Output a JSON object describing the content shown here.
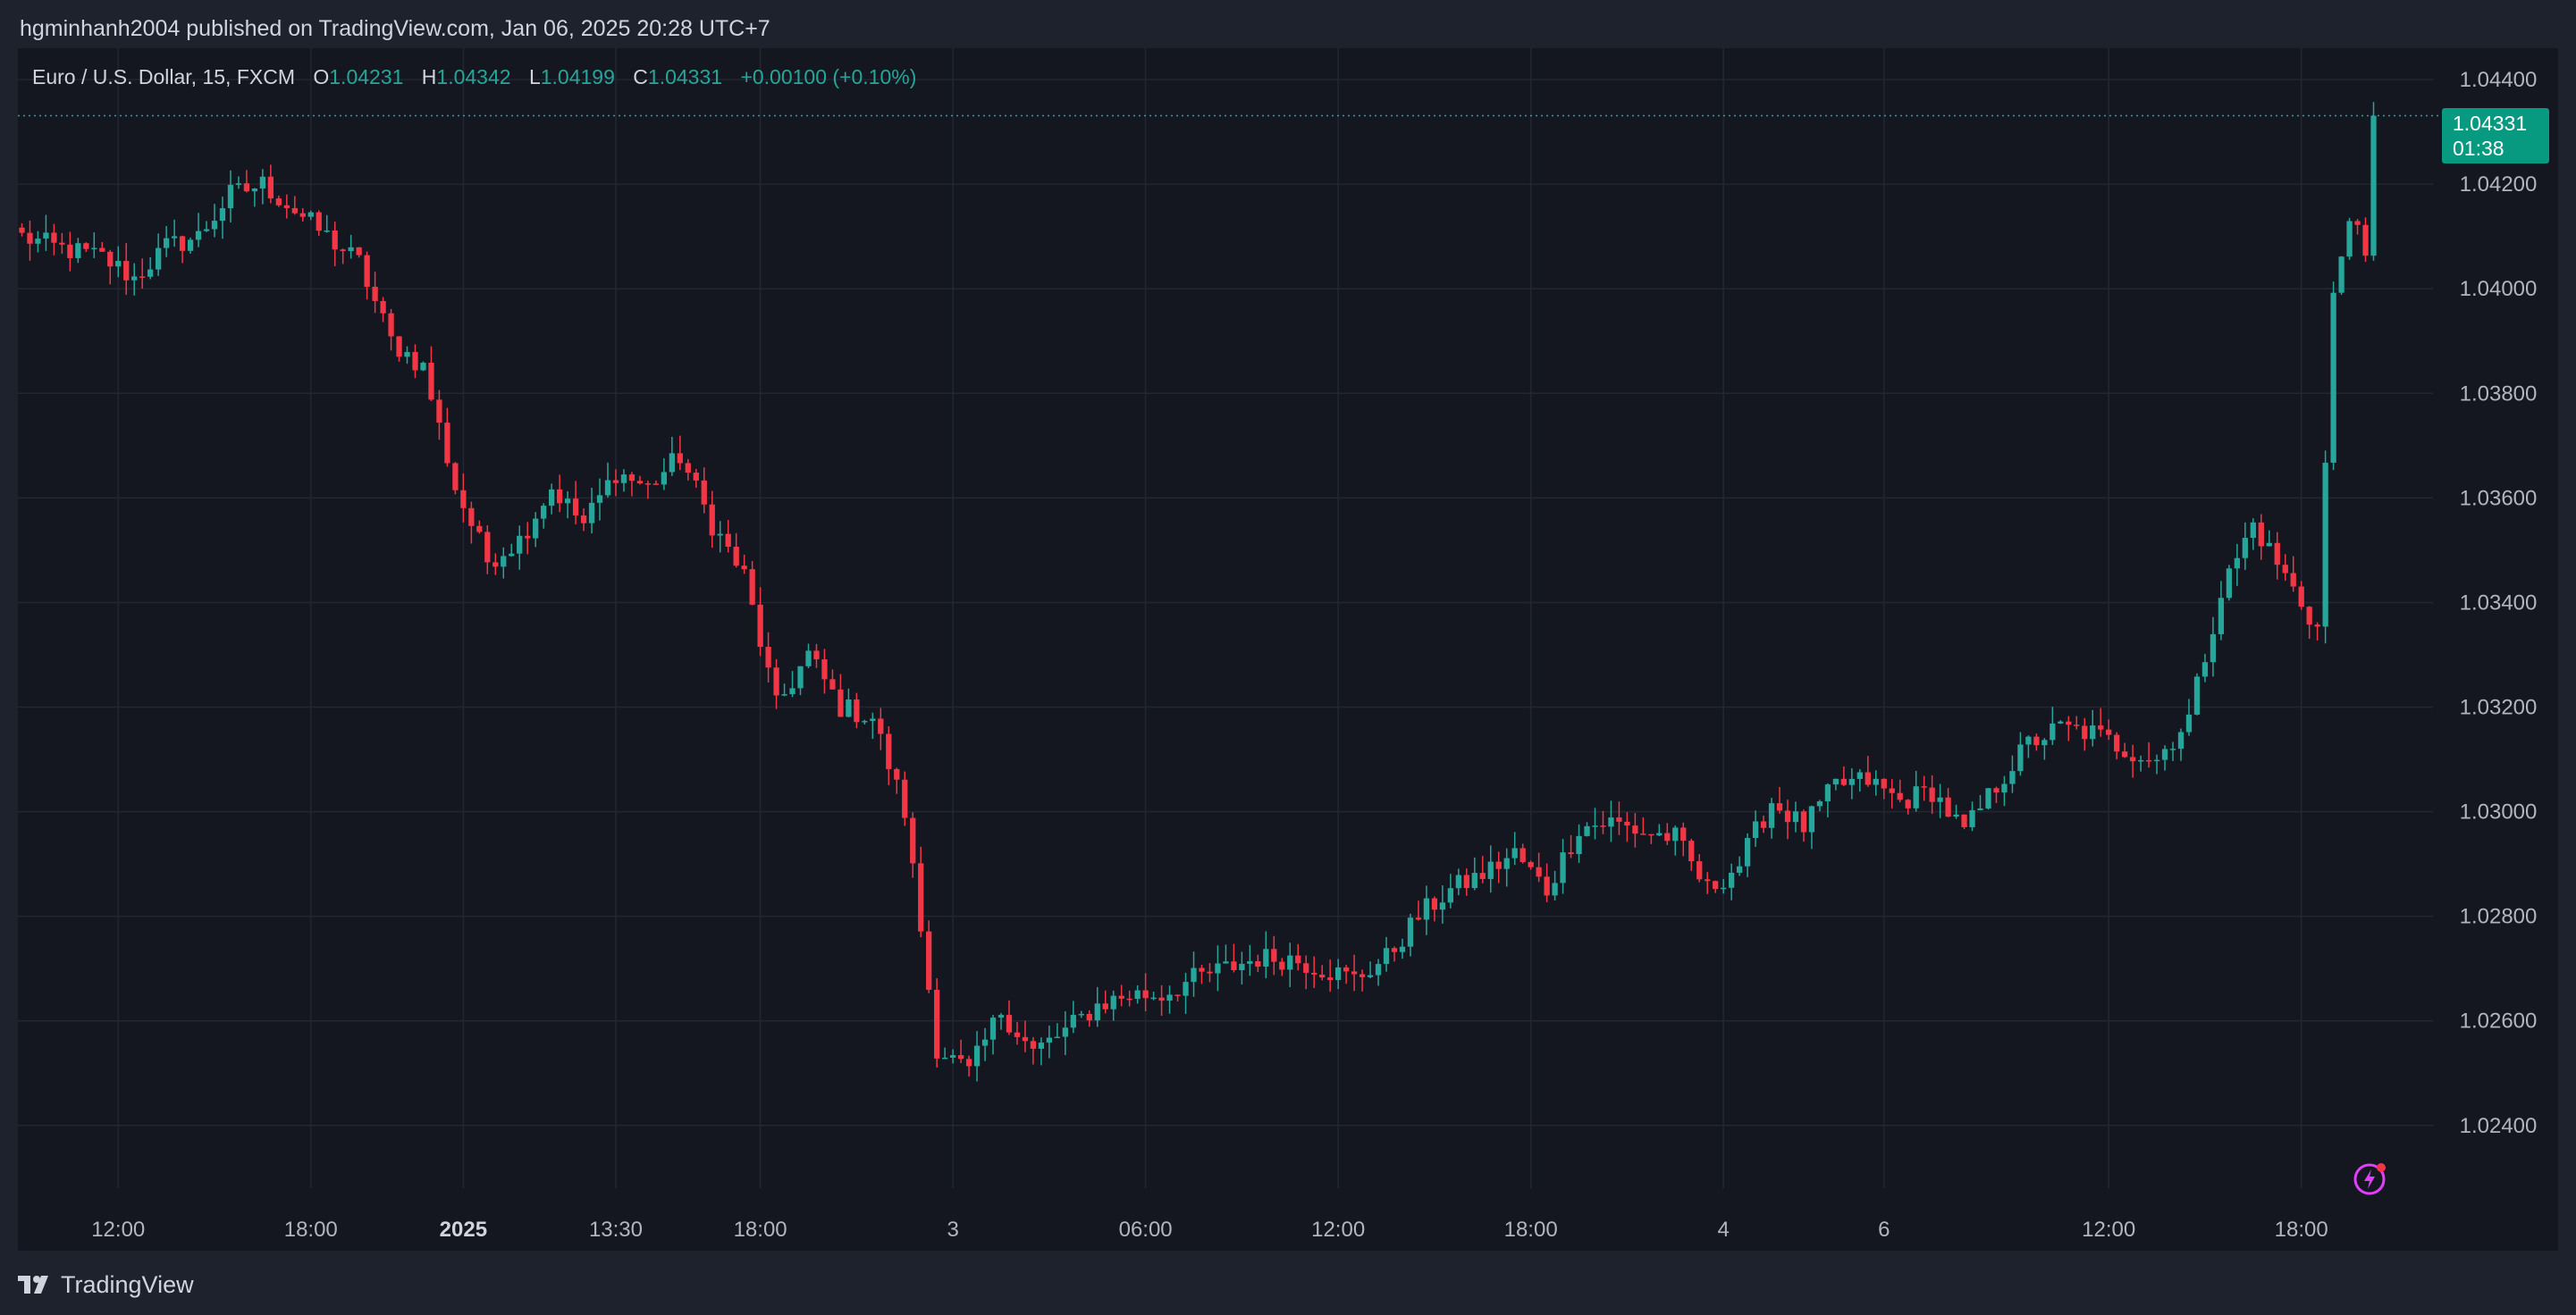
{
  "header": {
    "published_by": "hgminhanh2004 published on TradingView.com, Jan 06, 2025 20:28 UTC+7"
  },
  "legend": {
    "symbol": "Euro / U.S. Dollar, 15, FXCM",
    "open_label": "O",
    "open": "1.04231",
    "high_label": "H",
    "high": "1.04342",
    "low_label": "L",
    "low": "1.04199",
    "close_label": "C",
    "close": "1.04331",
    "change": "+0.00100 (+0.10%)"
  },
  "price_tag": {
    "price": "1.04331",
    "countdown": "01:38"
  },
  "footer": {
    "brand": "TradingView"
  },
  "icons": {
    "logo": "tradingview-logo-icon",
    "bolt": "lightning-bolt-icon"
  },
  "colors": {
    "up": "#26a69a",
    "down": "#f23645",
    "background": "#141720",
    "grid": "#232732",
    "axis_text": "#b2b5be",
    "accent_bolt": "#e040fb"
  },
  "chart_data": {
    "type": "candlestick",
    "ylim": [
      1.0228,
      1.0446
    ],
    "y_ticks": [
      "1.04400",
      "1.04200",
      "1.04000",
      "1.03800",
      "1.03600",
      "1.03400",
      "1.03200",
      "1.03000",
      "1.02800",
      "1.02600",
      "1.02400"
    ],
    "x_ticks": [
      {
        "label": "12:00",
        "bar": 12
      },
      {
        "label": "18:00",
        "bar": 36
      },
      {
        "label": "2025",
        "bar": 55,
        "bold": true
      },
      {
        "label": "13:30",
        "bar": 74
      },
      {
        "label": "18:00",
        "bar": 92
      },
      {
        "label": "3",
        "bar": 116
      },
      {
        "label": "06:00",
        "bar": 140
      },
      {
        "label": "12:00",
        "bar": 164
      },
      {
        "label": "18:00",
        "bar": 188
      },
      {
        "label": "4",
        "bar": 212
      },
      {
        "label": "6",
        "bar": 232
      },
      {
        "label": "12:00",
        "bar": 260
      },
      {
        "label": "18:00",
        "bar": 284
      }
    ],
    "current_price": 1.04331,
    "last_bar": 293,
    "key_prices": [
      [
        0,
        1.041
      ],
      [
        4,
        1.0408
      ],
      [
        10,
        1.0406
      ],
      [
        14,
        1.0402
      ],
      [
        18,
        1.0408
      ],
      [
        22,
        1.041
      ],
      [
        26,
        1.0418
      ],
      [
        30,
        1.042
      ],
      [
        34,
        1.0415
      ],
      [
        38,
        1.041
      ],
      [
        42,
        1.0405
      ],
      [
        46,
        1.039
      ],
      [
        50,
        1.0385
      ],
      [
        54,
        1.0362
      ],
      [
        58,
        1.0348
      ],
      [
        62,
        1.0352
      ],
      [
        66,
        1.0362
      ],
      [
        70,
        1.0355
      ],
      [
        74,
        1.0365
      ],
      [
        78,
        1.0362
      ],
      [
        82,
        1.0368
      ],
      [
        86,
        1.0355
      ],
      [
        90,
        1.0345
      ],
      [
        94,
        1.032
      ],
      [
        98,
        1.033
      ],
      [
        102,
        1.032
      ],
      [
        106,
        1.0318
      ],
      [
        110,
        1.03
      ],
      [
        114,
        1.0255
      ],
      [
        118,
        1.025
      ],
      [
        122,
        1.0262
      ],
      [
        126,
        1.0254
      ],
      [
        130,
        1.0258
      ],
      [
        134,
        1.0263
      ],
      [
        138,
        1.0265
      ],
      [
        142,
        1.0265
      ],
      [
        146,
        1.0268
      ],
      [
        150,
        1.027
      ],
      [
        154,
        1.0272
      ],
      [
        158,
        1.0272
      ],
      [
        162,
        1.027
      ],
      [
        166,
        1.0268
      ],
      [
        170,
        1.0272
      ],
      [
        174,
        1.028
      ],
      [
        178,
        1.0285
      ],
      [
        182,
        1.0288
      ],
      [
        186,
        1.0292
      ],
      [
        190,
        1.0285
      ],
      [
        194,
        1.0297
      ],
      [
        198,
        1.0298
      ],
      [
        202,
        1.0296
      ],
      [
        206,
        1.0295
      ],
      [
        210,
        1.0285
      ],
      [
        214,
        1.029
      ],
      [
        218,
        1.0302
      ],
      [
        222,
        1.0297
      ],
      [
        226,
        1.0305
      ],
      [
        230,
        1.0306
      ],
      [
        234,
        1.0302
      ],
      [
        238,
        1.0304
      ],
      [
        242,
        1.0296
      ],
      [
        246,
        1.0305
      ],
      [
        250,
        1.0313
      ],
      [
        254,
        1.0316
      ],
      [
        258,
        1.0315
      ],
      [
        262,
        1.0312
      ],
      [
        266,
        1.031
      ],
      [
        270,
        1.0318
      ],
      [
        274,
        1.0342
      ],
      [
        278,
        1.0355
      ],
      [
        282,
        1.0345
      ],
      [
        286,
        1.0335
      ],
      [
        288,
        1.0398
      ],
      [
        290,
        1.0415
      ],
      [
        292,
        1.0405
      ],
      [
        293,
        1.04331
      ]
    ]
  }
}
